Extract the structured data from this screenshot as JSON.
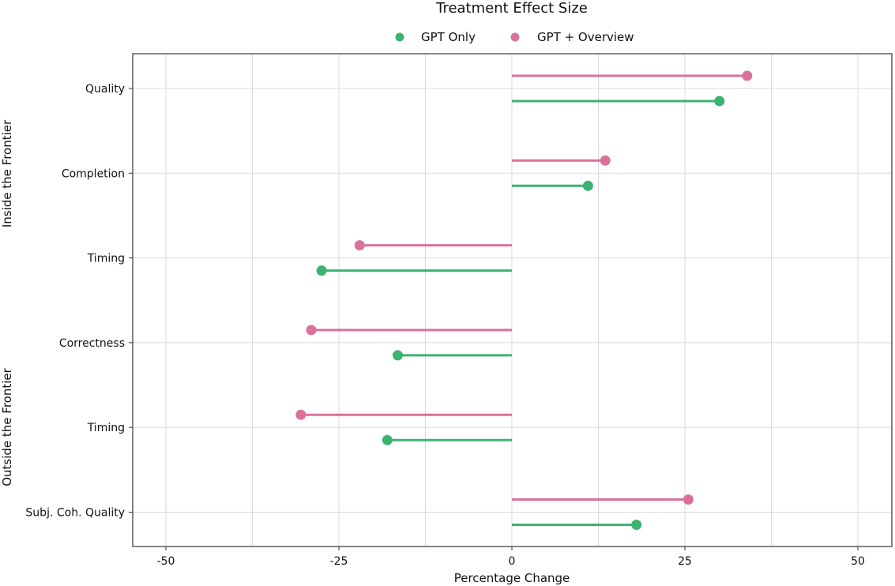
{
  "chart_data": {
    "type": "lollipop",
    "title": "Treatment Effect Size",
    "xlabel": "Percentage Change",
    "xlim": [
      -60,
      60
    ],
    "xticks": [
      -50,
      -25,
      0,
      25,
      50
    ],
    "xtick_labels": [
      "-50",
      "-25",
      "0",
      "25",
      "50"
    ],
    "grid": true,
    "legend_position": "top-center",
    "categories": [
      "Quality",
      "Completion",
      "Timing",
      "Correctness",
      "Timing",
      "Subj. Coh. Quality"
    ],
    "groups": [
      {
        "label": "Inside the Frontier",
        "categories": [
          0,
          1,
          2
        ]
      },
      {
        "label": "Outside the Frontier",
        "categories": [
          3,
          4,
          5
        ]
      }
    ],
    "series": [
      {
        "name": "GPT Only",
        "color": "#3cb371",
        "values": [
          30,
          11,
          -27.5,
          -16.5,
          -18,
          18
        ]
      },
      {
        "name": "GPT + Overview",
        "color": "#d9729a",
        "values": [
          34,
          13.5,
          -22,
          -29,
          -30.5,
          25.5
        ]
      }
    ]
  }
}
